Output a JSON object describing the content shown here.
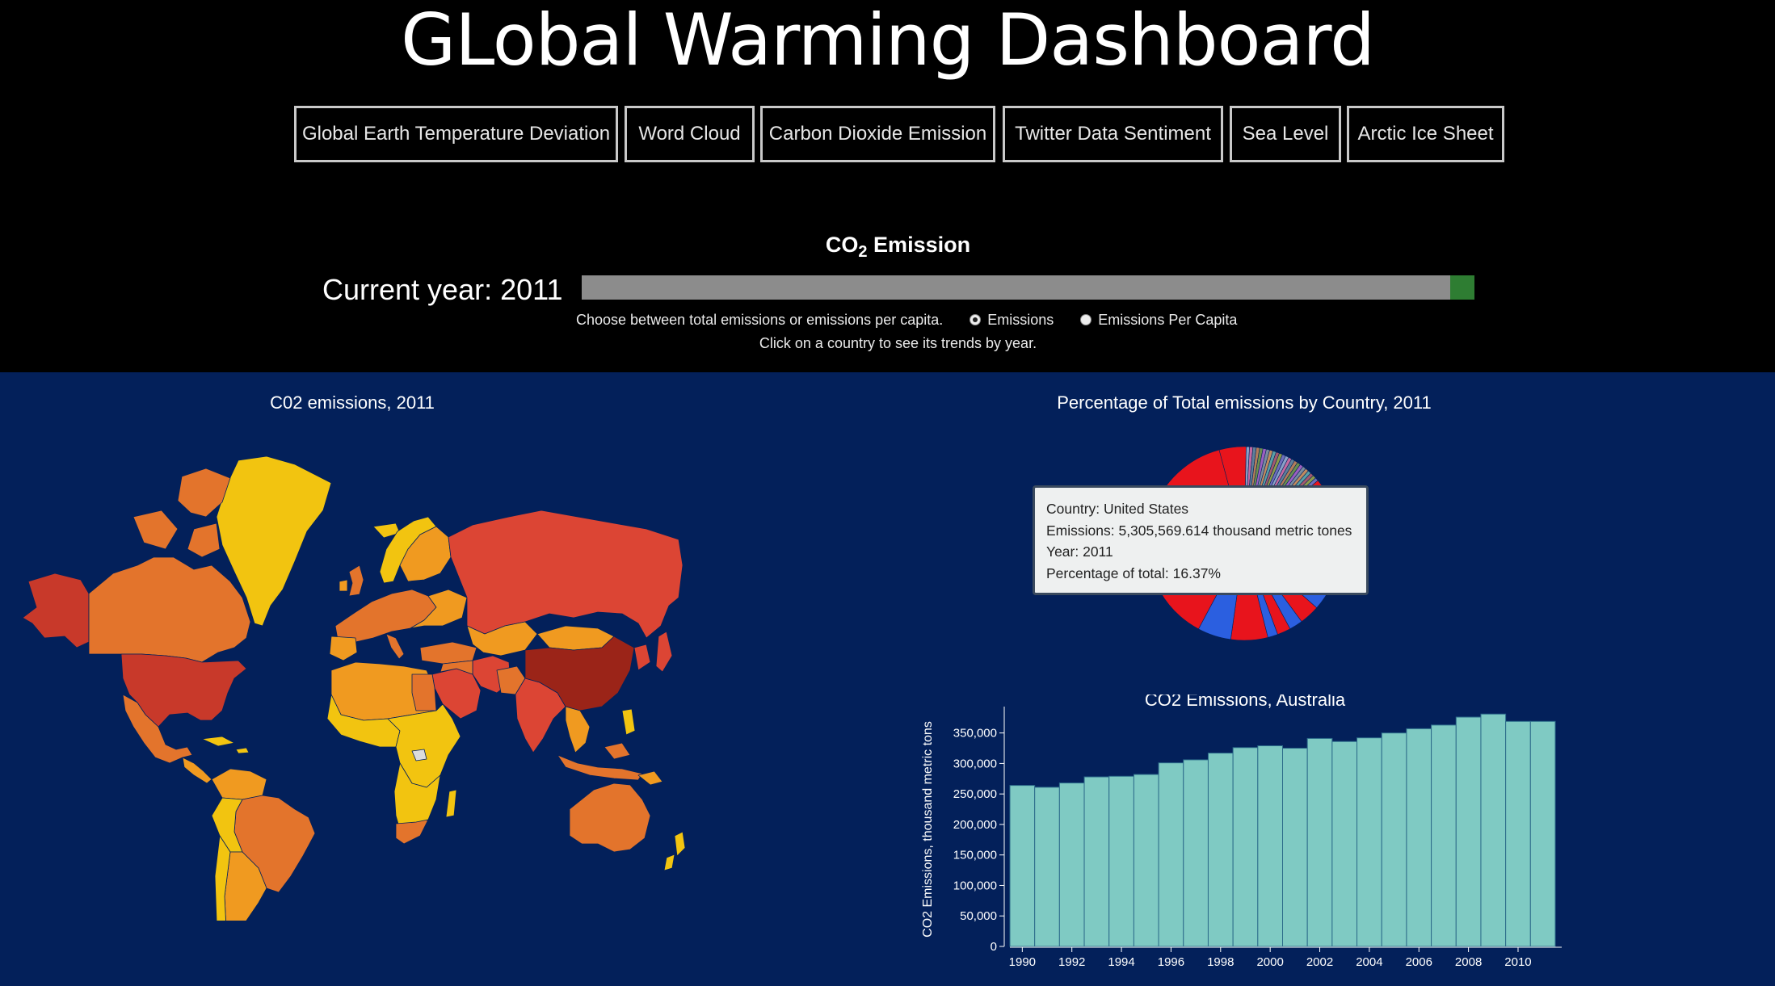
{
  "title": "GLobal Warming Dashboard",
  "nav": [
    {
      "label": "Global Earth Temperature Deviation"
    },
    {
      "label": "Word Cloud"
    },
    {
      "label": "Carbon Dioxide Emission"
    },
    {
      "label": "Twitter Data Sentiment"
    },
    {
      "label": "Sea Level"
    },
    {
      "label": "Arctic Ice Sheet"
    }
  ],
  "co2_heading": {
    "prefix": "CO",
    "sub": "2",
    "suffix": "Emission"
  },
  "current_year_label": "Current year: 2011",
  "slider": {
    "value_fraction": 1.0,
    "handle_color": "#2e7d32",
    "track_color": "#8c8c8c"
  },
  "choose_text": "Choose between total emissions or emissions per capita.",
  "radio_options": [
    {
      "label": "Emissions",
      "checked": true
    },
    {
      "label": "Emissions Per Capita",
      "checked": false
    }
  ],
  "click_hint": "Click on a country to see its trends by year.",
  "map_title": "C02 emissions, 2011",
  "pie_title": "Percentage of Total emissions by Country, 2011",
  "tooltip": {
    "country": "Country: United States",
    "emissions": "Emissions: 5,305,569.614 thousand metric tones",
    "year": "Year: 2011",
    "percentage": "Percentage of total: 16.37%"
  },
  "colors": {
    "background": "#03205a",
    "bar_fill": "#7fcac3",
    "map_high": "#9b2418",
    "map_mid_high": "#dc4534",
    "map_mid": "#e3742c",
    "map_low_mid": "#f09a20",
    "map_low": "#f2c410"
  },
  "chart_data": {
    "type": "bar",
    "title": "CO2 Emissions, Australia",
    "xlabel": "",
    "ylabel": "CO2 Emissions, thousand metric tons",
    "categories": [
      "1990",
      "1991",
      "1992",
      "1993",
      "1994",
      "1995",
      "1996",
      "1997",
      "1998",
      "1999",
      "2000",
      "2001",
      "2002",
      "2003",
      "2004",
      "2005",
      "2006",
      "2007",
      "2008",
      "2009",
      "2010",
      "2011"
    ],
    "x_tick_labels": [
      "1990",
      "1992",
      "1994",
      "1996",
      "1998",
      "2000",
      "2002",
      "2004",
      "2006",
      "2008",
      "2010"
    ],
    "values": [
      264000,
      261000,
      268000,
      278000,
      279000,
      282000,
      301000,
      306000,
      317000,
      326000,
      329000,
      325000,
      341000,
      336000,
      342000,
      350000,
      357000,
      363000,
      376000,
      381000,
      369000,
      369000
    ],
    "y_ticks": [
      "0",
      "50,000",
      "100,000",
      "150,000",
      "200,000",
      "250,000",
      "300,000",
      "350,000"
    ],
    "ylim": [
      0,
      380000
    ],
    "grid": false
  }
}
